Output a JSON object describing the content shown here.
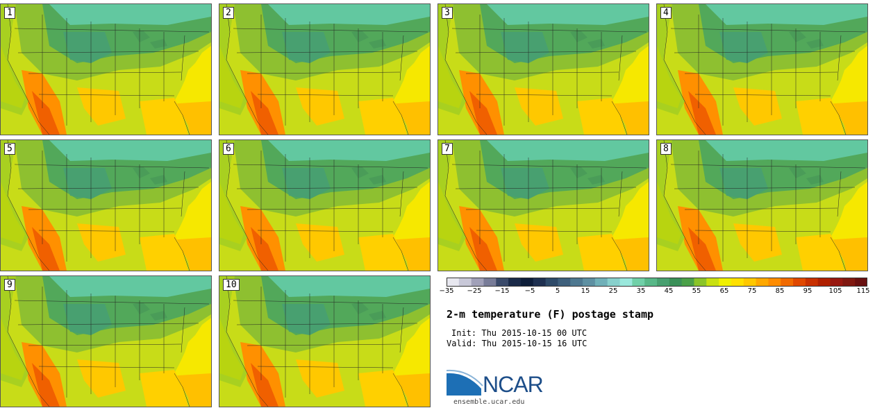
{
  "panels": [
    {
      "label": "1"
    },
    {
      "label": "2"
    },
    {
      "label": "3"
    },
    {
      "label": "4"
    },
    {
      "label": "5"
    },
    {
      "label": "6"
    },
    {
      "label": "7"
    },
    {
      "label": "8"
    },
    {
      "label": "9"
    },
    {
      "label": "10"
    }
  ],
  "colorbar": {
    "colors": [
      "#e8e8f0",
      "#c8c8d8",
      "#a0a0b8",
      "#787c98",
      "#3a4a6a",
      "#1a2a48",
      "#0e1e3a",
      "#1e3050",
      "#2e4a68",
      "#3e607c",
      "#4e7890",
      "#5e90a2",
      "#70b0b8",
      "#88d0cc",
      "#9ae8dc",
      "#70d0a8",
      "#58b888",
      "#48a070",
      "#3a9058",
      "#4aa048",
      "#8ac428",
      "#c8e010",
      "#f0f000",
      "#ffe000",
      "#ffc800",
      "#ffa800",
      "#ff8c00",
      "#f06a00",
      "#e04800",
      "#c83000",
      "#b02000",
      "#981810",
      "#801810",
      "#681010"
    ],
    "tick_labels": [
      "−35",
      "−25",
      "−15",
      "−5",
      "5",
      "15",
      "25",
      "35",
      "45",
      "55",
      "65",
      "75",
      "85",
      "95",
      "105",
      "115"
    ]
  },
  "chart_data": {
    "type": "heatmap",
    "title": "2-m temperature (F) postage stamp",
    "variable": "2-m temperature",
    "units": "F",
    "members": [
      "1",
      "2",
      "3",
      "4",
      "5",
      "6",
      "7",
      "8",
      "9",
      "10"
    ],
    "color_levels": [
      -40,
      -35,
      -30,
      -25,
      -20,
      -15,
      -10,
      -5,
      0,
      5,
      10,
      15,
      20,
      25,
      30,
      35,
      40,
      45,
      50,
      55,
      60,
      65,
      70,
      75,
      80,
      85,
      90,
      95,
      100,
      105,
      110,
      115,
      120,
      125
    ],
    "colorbar_ticks": [
      -35,
      -25,
      -15,
      -5,
      5,
      15,
      25,
      35,
      45,
      55,
      65,
      75,
      85,
      95,
      105,
      115
    ]
  },
  "info": {
    "title": "2-m temperature (F) postage stamp",
    "init": "Init: Thu 2015-10-15 00 UTC",
    "valid": "Valid: Thu 2015-10-15 16 UTC"
  },
  "logo": {
    "name": "NCAR",
    "url": "ensemble.ucar.edu",
    "color": "#1d4e89"
  }
}
